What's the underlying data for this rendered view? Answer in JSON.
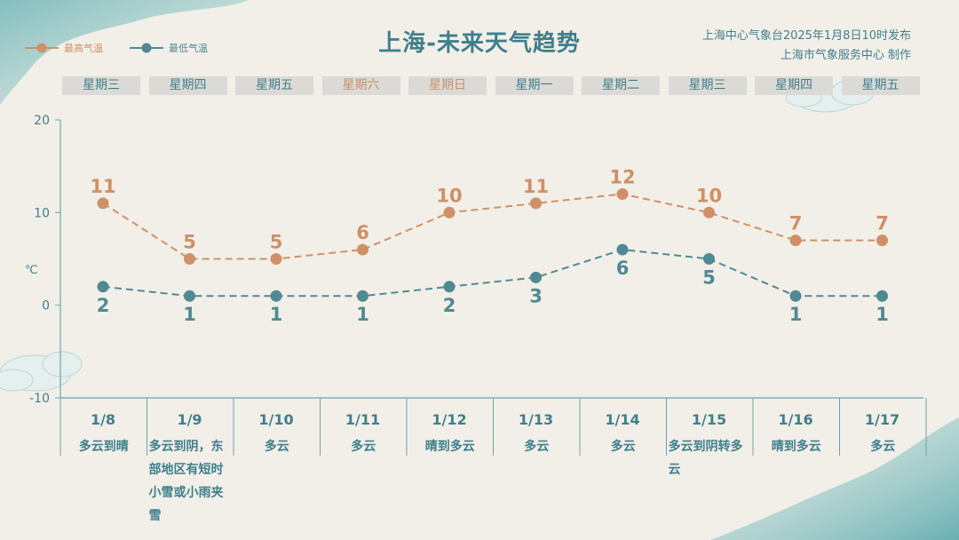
{
  "header": {
    "title": "上海-未来天气趋势",
    "publisher_line1": "上海中心气象台2025年1月8日10时发布",
    "publisher_line2": "上海市气象服务中心  制作"
  },
  "legend": {
    "high_label": "最高气温",
    "low_label": "最低气温"
  },
  "colors": {
    "high": "#cf9067",
    "low": "#4f8a93",
    "axis": "#6aa5ad",
    "text": "#3f7f8c"
  },
  "weekdays": [
    "星期三",
    "星期四",
    "星期五",
    "星期六",
    "星期日",
    "星期一",
    "星期二",
    "星期三",
    "星期四",
    "星期五"
  ],
  "weekend_indices": [
    3,
    4
  ],
  "conditions": [
    "多云到晴",
    "多云到阴，东部地区有短时小雪或小雨夹雪",
    "多云",
    "多云",
    "晴到多云",
    "多云",
    "多云",
    "多云到阴转多云",
    "晴到多云",
    "多云"
  ],
  "chart_data": {
    "type": "line",
    "categories": [
      "1/8",
      "1/9",
      "1/10",
      "1/11",
      "1/12",
      "1/13",
      "1/14",
      "1/15",
      "1/16",
      "1/17"
    ],
    "series": [
      {
        "name": "最高气温",
        "values": [
          11,
          5,
          5,
          6,
          10,
          11,
          12,
          10,
          7,
          7
        ]
      },
      {
        "name": "最低气温",
        "values": [
          2,
          1,
          1,
          1,
          2,
          3,
          6,
          5,
          1,
          1
        ]
      }
    ],
    "ylabel": "℃",
    "ylim": [
      -10,
      20
    ],
    "yticks": [
      -10,
      0,
      10,
      20
    ],
    "grid": false,
    "legend_position": "top-left"
  }
}
